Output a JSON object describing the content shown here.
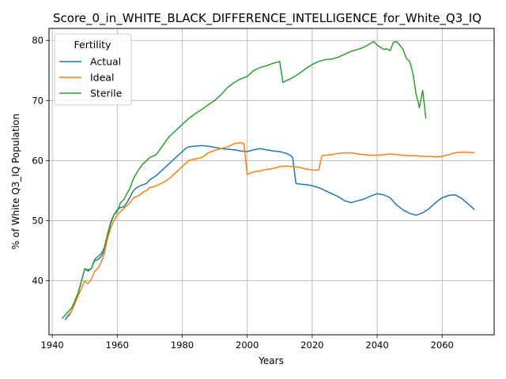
{
  "chart_data": {
    "type": "line",
    "title": "Score_0_in_WHITE_BLACK_DIFFERENCE_INTELLIGENCE_for_White_Q3_IQ",
    "xlabel": "Years",
    "ylabel": "% of White Q3_IQ Population",
    "xlim": [
      1939,
      2076
    ],
    "ylim": [
      31,
      82
    ],
    "xticks": [
      1940,
      1960,
      1980,
      2000,
      2020,
      2040,
      2060
    ],
    "yticks": [
      40,
      50,
      60,
      70,
      80
    ],
    "grid": true,
    "legend": {
      "title": "Fertility",
      "placement": "top-left"
    },
    "series": [
      {
        "name": "Actual",
        "color": "#1f77b4",
        "x": [
          1944,
          1946,
          1948,
          1950,
          1951,
          1952,
          1953,
          1954,
          1955,
          1956,
          1957,
          1958,
          1959,
          1960,
          1961,
          1962,
          1963,
          1964,
          1965,
          1966,
          1967,
          1968,
          1969,
          1970,
          1972,
          1974,
          1976,
          1978,
          1980,
          1981,
          1982,
          1984,
          1986,
          1988,
          1990,
          1992,
          1994,
          1996,
          1998,
          2000,
          2002,
          2004,
          2006,
          2008,
          2010,
          2012,
          2013,
          2014,
          2015,
          2016,
          2018,
          2020,
          2022,
          2024,
          2026,
          2028,
          2030,
          2032,
          2034,
          2036,
          2038,
          2040,
          2042,
          2044,
          2046,
          2048,
          2050,
          2052,
          2053,
          2054,
          2056,
          2058,
          2060,
          2062,
          2064,
          2066,
          2068,
          2070
        ],
        "values": [
          33.5,
          35.0,
          38.0,
          42.0,
          41.6,
          42.0,
          43.3,
          43.5,
          44.0,
          45.0,
          47.5,
          49.5,
          51.0,
          51.8,
          52.2,
          52.3,
          53.0,
          54.0,
          55.0,
          55.5,
          55.8,
          56.0,
          56.2,
          56.8,
          57.5,
          58.5,
          59.5,
          60.5,
          61.5,
          62.0,
          62.3,
          62.4,
          62.5,
          62.4,
          62.2,
          62.0,
          61.9,
          61.8,
          61.6,
          61.5,
          61.8,
          62.0,
          61.8,
          61.6,
          61.5,
          61.2,
          61.0,
          60.5,
          56.2,
          56.1,
          56.0,
          55.8,
          55.5,
          55.0,
          54.5,
          54.0,
          53.3,
          53.0,
          53.3,
          53.6,
          54.1,
          54.5,
          54.3,
          53.8,
          52.6,
          51.8,
          51.2,
          50.9,
          51.1,
          51.3,
          52.0,
          53.0,
          53.8,
          54.2,
          54.3,
          53.7,
          52.8,
          51.8
        ]
      },
      {
        "name": "Ideal",
        "color": "#ff7f0e",
        "x": [
          1945,
          1946,
          1948,
          1950,
          1951,
          1952,
          1953,
          1954,
          1955,
          1956,
          1957,
          1958,
          1959,
          1960,
          1961,
          1962,
          1963,
          1964,
          1965,
          1966,
          1967,
          1968,
          1969,
          1970,
          1972,
          1974,
          1976,
          1978,
          1980,
          1981,
          1982,
          1984,
          1986,
          1988,
          1990,
          1992,
          1994,
          1996,
          1998,
          1999,
          2000,
          2002,
          2004,
          2006,
          2008,
          2010,
          2012,
          2014,
          2016,
          2018,
          2020,
          2022,
          2023,
          2024,
          2026,
          2028,
          2030,
          2032,
          2034,
          2036,
          2038,
          2040,
          2042,
          2044,
          2046,
          2048,
          2050,
          2052,
          2054,
          2056,
          2058,
          2060,
          2062,
          2064,
          2066,
          2068,
          2070
        ],
        "values": [
          34.0,
          35.0,
          37.5,
          40.0,
          39.5,
          40.2,
          41.5,
          42.0,
          43.0,
          44.5,
          47.0,
          48.8,
          50.0,
          51.0,
          51.5,
          52.0,
          52.5,
          53.0,
          53.8,
          54.0,
          54.3,
          54.8,
          55.0,
          55.5,
          55.8,
          56.3,
          57.0,
          58.0,
          59.0,
          59.5,
          60.0,
          60.3,
          60.5,
          61.3,
          61.7,
          62.0,
          62.3,
          62.8,
          63.0,
          62.8,
          57.7,
          58.1,
          58.3,
          58.5,
          58.7,
          59.0,
          59.1,
          59.0,
          58.9,
          58.6,
          58.4,
          58.4,
          60.8,
          60.9,
          61.0,
          61.2,
          61.3,
          61.3,
          61.1,
          61.0,
          60.9,
          60.9,
          61.0,
          61.1,
          61.0,
          60.9,
          60.8,
          60.8,
          60.7,
          60.7,
          60.6,
          60.7,
          61.0,
          61.3,
          61.4,
          61.4,
          61.3
        ]
      },
      {
        "name": "Sterile",
        "color": "#2ca02c",
        "x": [
          1943,
          1946,
          1948,
          1950,
          1951,
          1952,
          1953,
          1954,
          1955,
          1956,
          1957,
          1958,
          1959,
          1960,
          1961,
          1962,
          1963,
          1964,
          1965,
          1966,
          1967,
          1968,
          1969,
          1970,
          1972,
          1974,
          1976,
          1978,
          1980,
          1982,
          1984,
          1986,
          1988,
          1990,
          1992,
          1994,
          1996,
          1998,
          2000,
          2002,
          2004,
          2006,
          2008,
          2010,
          2011,
          2012,
          2014,
          2016,
          2018,
          2020,
          2022,
          2024,
          2026,
          2028,
          2030,
          2032,
          2034,
          2036,
          2038,
          2039,
          2040,
          2042,
          2043,
          2044,
          2045,
          2046,
          2047,
          2048,
          2049,
          2050,
          2051,
          2052,
          2053,
          2054,
          2055
        ],
        "values": [
          33.7,
          35.5,
          38.0,
          42.0,
          41.8,
          42.0,
          43.5,
          44.0,
          44.5,
          45.5,
          47.8,
          49.8,
          51.0,
          51.5,
          53.0,
          53.5,
          54.5,
          55.5,
          57.0,
          58.0,
          58.8,
          59.5,
          60.0,
          60.5,
          61.0,
          62.5,
          64.0,
          65.0,
          66.0,
          67.0,
          67.8,
          68.5,
          69.3,
          70.0,
          71.0,
          72.2,
          73.0,
          73.6,
          74.0,
          75.0,
          75.5,
          75.8,
          76.2,
          76.5,
          73.0,
          73.3,
          73.8,
          74.5,
          75.3,
          76.0,
          76.5,
          76.8,
          76.9,
          77.2,
          77.7,
          78.2,
          78.5,
          78.9,
          79.5,
          79.8,
          79.2,
          78.5,
          78.6,
          78.3,
          79.7,
          79.8,
          79.2,
          78.5,
          77.0,
          76.5,
          74.5,
          71.0,
          68.8,
          71.7,
          67.0
        ]
      }
    ]
  }
}
